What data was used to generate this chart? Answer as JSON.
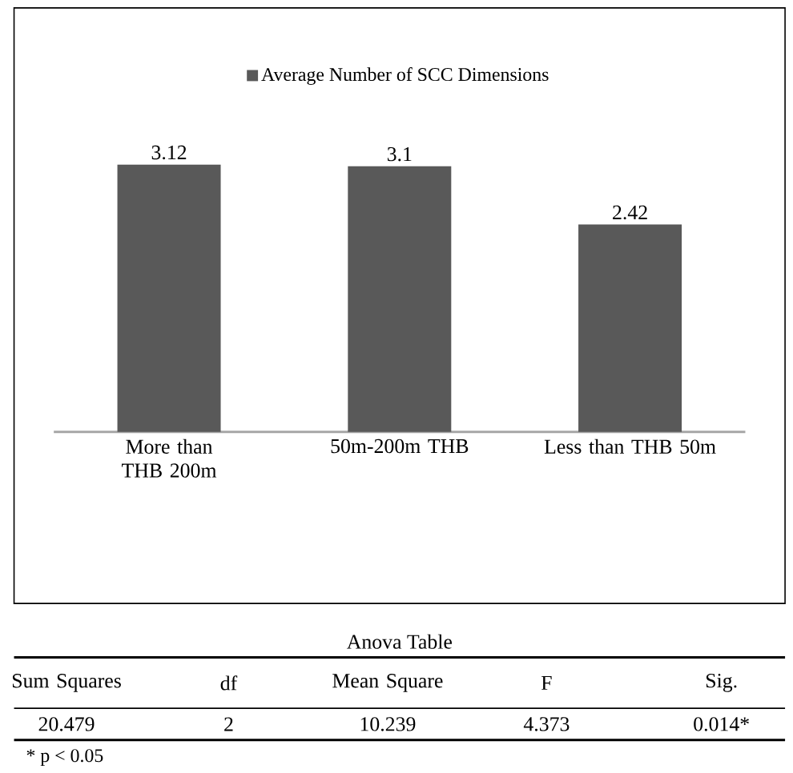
{
  "chart_data": [
    {
      "type": "bar",
      "categories": [
        "More than THB 200m",
        "50m-200m THB",
        "Less than THB 50m"
      ],
      "series": [
        {
          "name": "Average Number of SCC Dimensions",
          "color": "#595959",
          "values": [
            3.12,
            3.1,
            2.42
          ]
        }
      ],
      "data_labels": true,
      "legend": "top"
    },
    {
      "type": "other",
      "title": "Anova Table",
      "annotations": [
        "Sum Squares",
        "df",
        "Mean Square",
        "F",
        "Sig.",
        "20.479",
        "2",
        "10.239",
        "4.373",
        "0.014*",
        "* p < 0.05"
      ]
    }
  ]
}
